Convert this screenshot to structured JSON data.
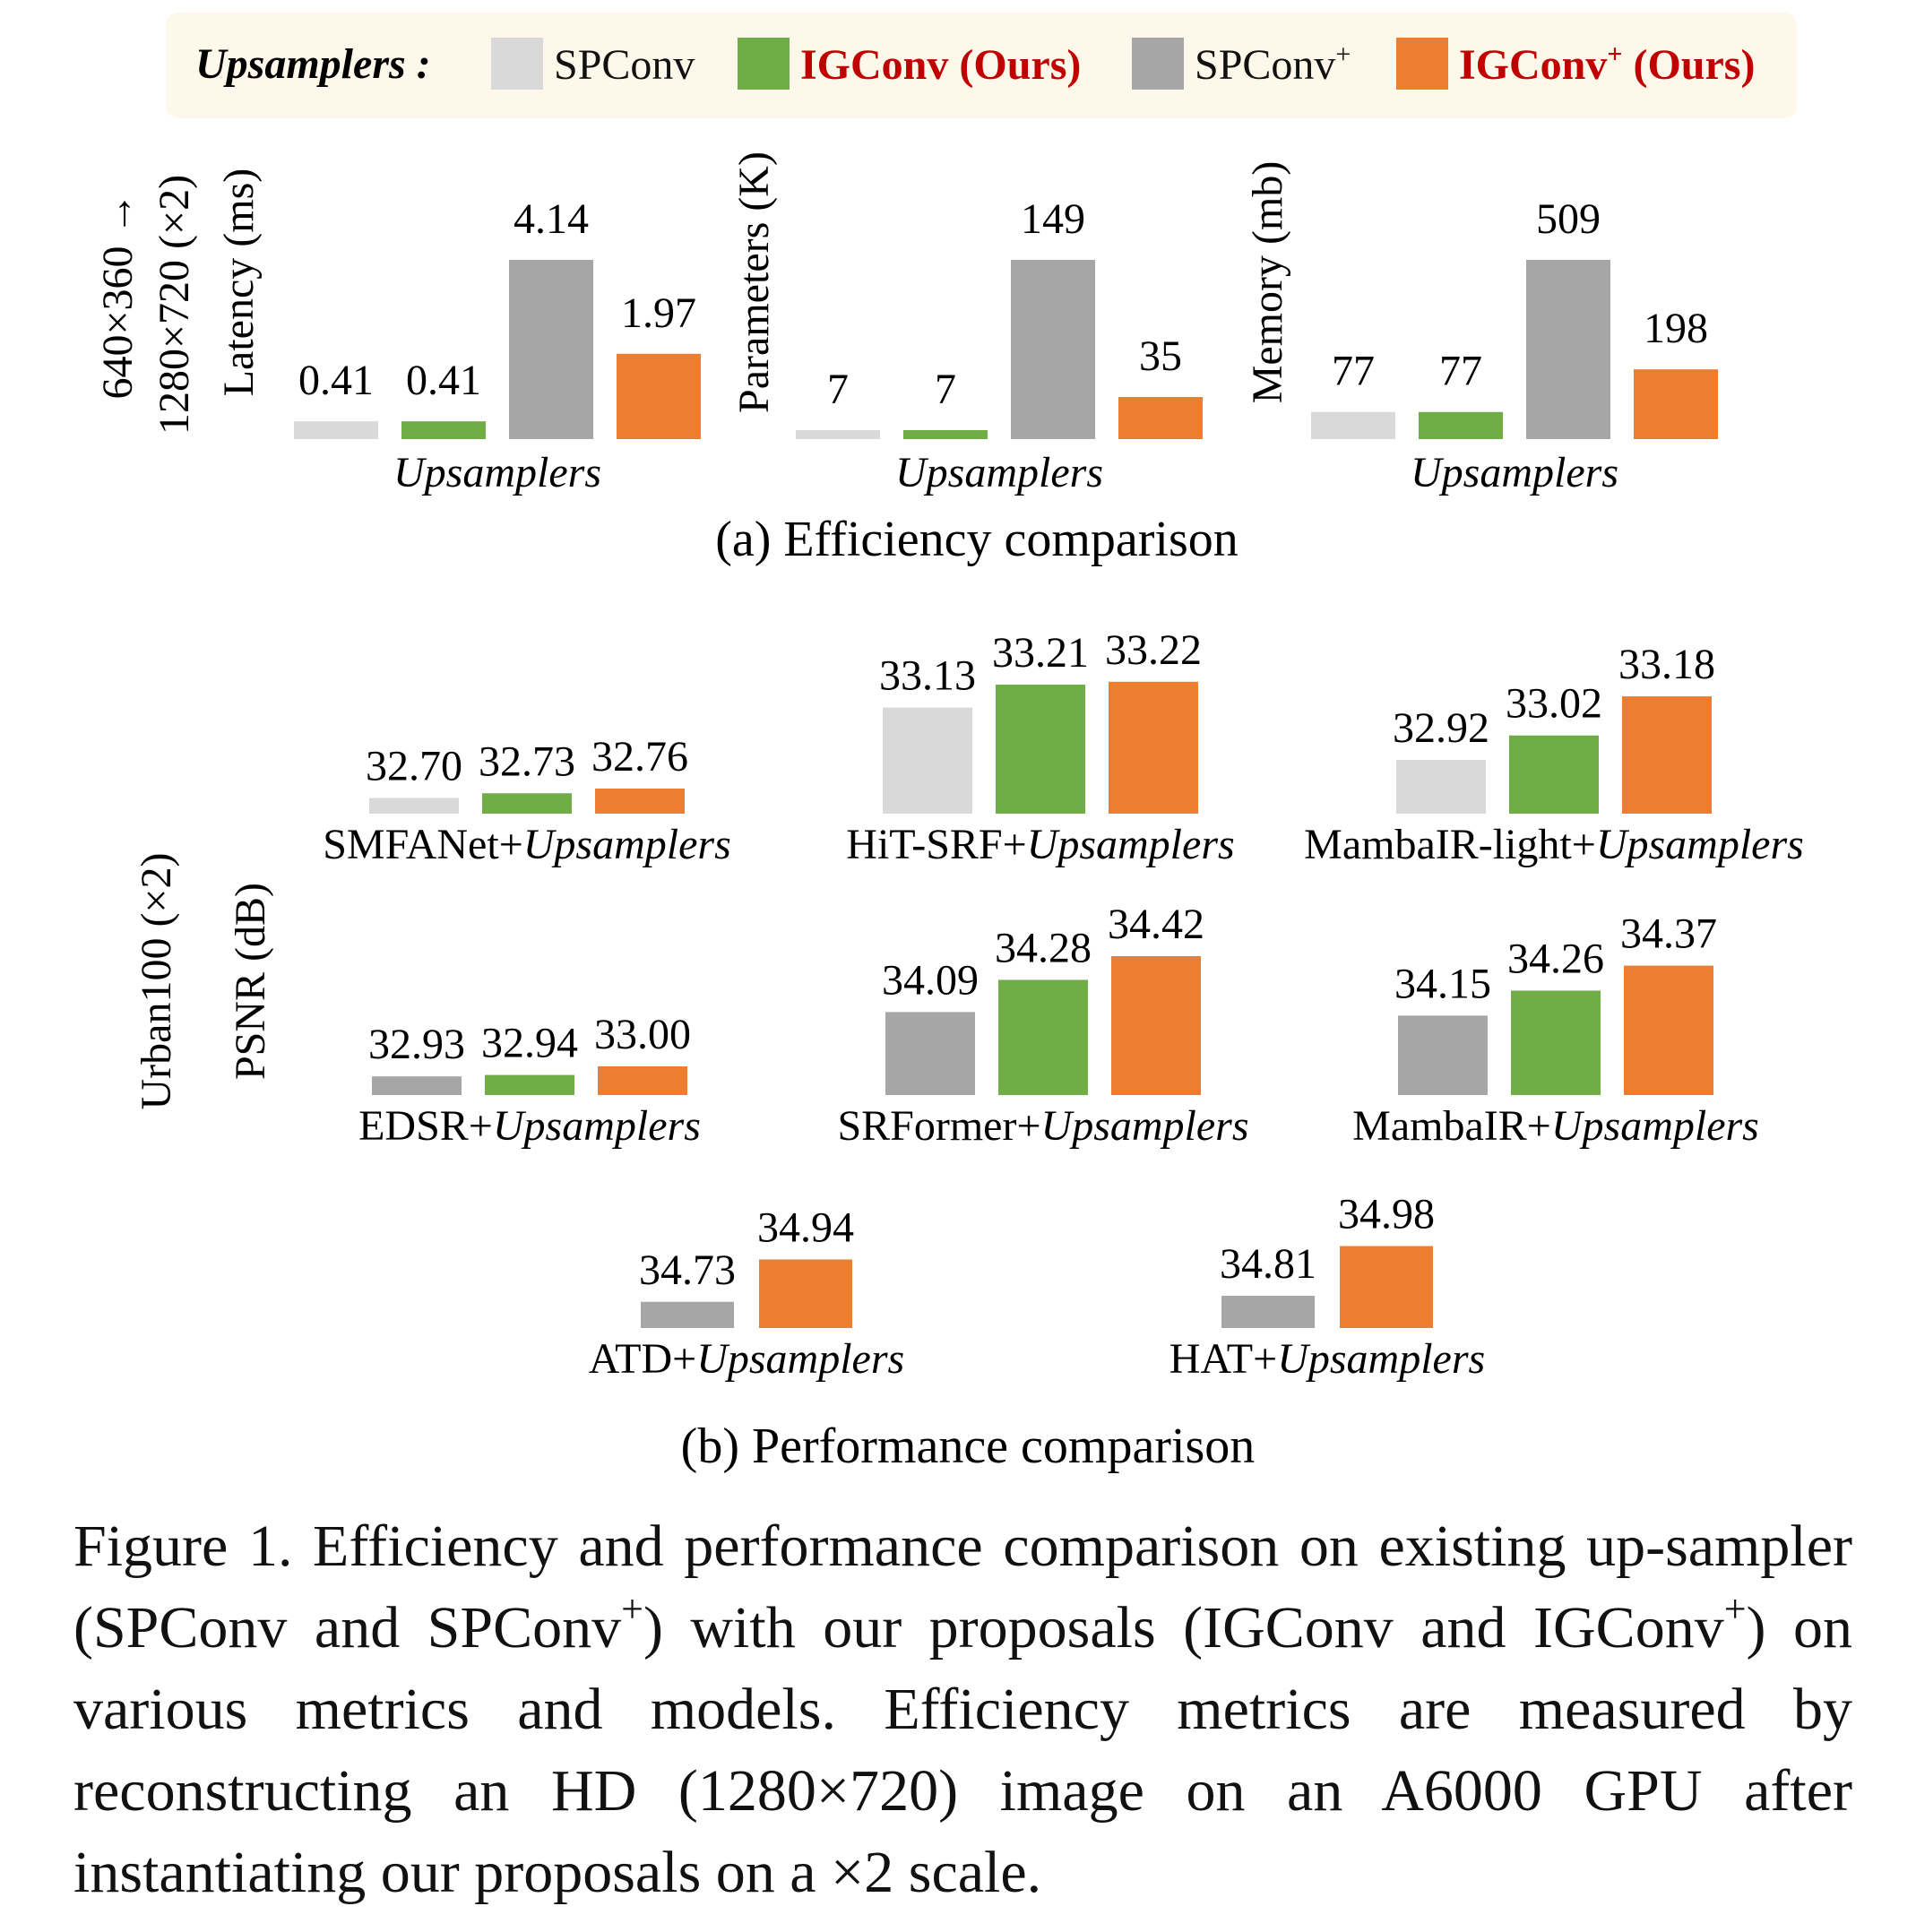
{
  "legend": {
    "title": "Upsamplers :",
    "items": [
      {
        "label": "SPConv",
        "sup": "",
        "ours": "",
        "color": "#d9d9d9",
        "label_color": "#111111",
        "bold": false
      },
      {
        "label": "IGConv",
        "sup": "",
        "ours": " (Ours)",
        "color": "#70ad47",
        "label_color": "#c00000",
        "bold": true
      },
      {
        "label": "SPConv",
        "sup": "+",
        "ours": "",
        "color": "#a6a6a6",
        "label_color": "#111111",
        "bold": false
      },
      {
        "label": "IGConv",
        "sup": "+",
        "ours": " (Ours)",
        "color": "#ed7d31",
        "label_color": "#c00000",
        "bold": true
      }
    ]
  },
  "efficiency": {
    "side_label_line1": "640×360 →",
    "side_label_line2": "1280×720 (×2)",
    "caption": "(a) Efficiency comparison"
  },
  "performance": {
    "side_label_1": "Urban100 (×2)",
    "side_label_2": "PSNR (dB)",
    "caption": "(b) Performance comparison"
  },
  "chart_data": [
    {
      "type": "bar",
      "group": "efficiency",
      "ylabel": "Latency (ms)",
      "xlabel": "Upsamplers",
      "categories": [
        "SPConv",
        "IGConv",
        "SPConv+",
        "IGConv+"
      ],
      "values": [
        0.41,
        0.41,
        4.14,
        1.97
      ],
      "labels": [
        "0.41",
        "0.41",
        "4.14",
        "1.97"
      ],
      "colors": [
        "#d9d9d9",
        "#70ad47",
        "#a6a6a6",
        "#ed7d31"
      ],
      "ymin": 0,
      "ymax": 4.14
    },
    {
      "type": "bar",
      "group": "efficiency",
      "ylabel": "Parameters (K)",
      "xlabel": "Upsamplers",
      "categories": [
        "SPConv",
        "IGConv",
        "SPConv+",
        "IGConv+"
      ],
      "values": [
        7,
        7,
        149,
        35
      ],
      "labels": [
        "7",
        "7",
        "149",
        "35"
      ],
      "colors": [
        "#d9d9d9",
        "#70ad47",
        "#a6a6a6",
        "#ed7d31"
      ],
      "ymin": 0,
      "ymax": 149
    },
    {
      "type": "bar",
      "group": "efficiency",
      "ylabel": "Memory (mb)",
      "xlabel": "Upsamplers",
      "categories": [
        "SPConv",
        "IGConv",
        "SPConv+",
        "IGConv+"
      ],
      "values": [
        77,
        77,
        509,
        198
      ],
      "labels": [
        "77",
        "77",
        "509",
        "198"
      ],
      "colors": [
        "#d9d9d9",
        "#70ad47",
        "#a6a6a6",
        "#ed7d31"
      ],
      "ymin": 0,
      "ymax": 509
    },
    {
      "type": "bar",
      "group": "performance",
      "model": "SMFANet",
      "xlabel_suffix": "Upsamplers",
      "categories": [
        "SPConv",
        "IGConv",
        "IGConv+"
      ],
      "values": [
        32.7,
        32.73,
        32.76
      ],
      "labels": [
        "32.70",
        "32.73",
        "32.76"
      ],
      "colors": [
        "#d9d9d9",
        "#70ad47",
        "#ed7d31"
      ],
      "ymin": 32.6,
      "ymax": 33.0
    },
    {
      "type": "bar",
      "group": "performance",
      "model": "HiT-SRF",
      "xlabel_suffix": "Upsamplers",
      "categories": [
        "SPConv",
        "IGConv",
        "IGConv+"
      ],
      "values": [
        33.13,
        33.21,
        33.22
      ],
      "labels": [
        "33.13",
        "33.21",
        "33.22"
      ],
      "colors": [
        "#d9d9d9",
        "#70ad47",
        "#ed7d31"
      ],
      "ymin": 32.76,
      "ymax": 33.26
    },
    {
      "type": "bar",
      "group": "performance",
      "model": "MambaIR-light",
      "xlabel_suffix": "Upsamplers",
      "categories": [
        "SPConv",
        "IGConv",
        "IGConv+"
      ],
      "values": [
        32.92,
        33.02,
        33.18
      ],
      "labels": [
        "32.92",
        "33.02",
        "33.18"
      ],
      "colors": [
        "#d9d9d9",
        "#70ad47",
        "#ed7d31"
      ],
      "ymin": 32.7,
      "ymax": 33.25
    },
    {
      "type": "bar",
      "group": "performance",
      "model": "EDSR",
      "xlabel_suffix": "Upsamplers",
      "categories": [
        "SPConv+",
        "IGConv",
        "IGConv+"
      ],
      "values": [
        32.93,
        32.94,
        33.0
      ],
      "labels": [
        "32.93",
        "32.94",
        "33.00"
      ],
      "colors": [
        "#a6a6a6",
        "#70ad47",
        "#ed7d31"
      ],
      "ymin": 32.8,
      "ymax": 33.3
    },
    {
      "type": "bar",
      "group": "performance",
      "model": "SRFormer",
      "xlabel_suffix": "Upsamplers",
      "categories": [
        "SPConv+",
        "IGConv",
        "IGConv+"
      ],
      "values": [
        34.09,
        34.28,
        34.42
      ],
      "labels": [
        "34.09",
        "34.28",
        "34.42"
      ],
      "colors": [
        "#a6a6a6",
        "#70ad47",
        "#ed7d31"
      ],
      "ymin": 33.6,
      "ymax": 34.42
    },
    {
      "type": "bar",
      "group": "performance",
      "model": "MambaIR",
      "xlabel_suffix": "Upsamplers",
      "categories": [
        "SPConv+",
        "IGConv",
        "IGConv+"
      ],
      "values": [
        34.15,
        34.26,
        34.37
      ],
      "labels": [
        "34.15",
        "34.26",
        "34.37"
      ],
      "colors": [
        "#a6a6a6",
        "#70ad47",
        "#ed7d31"
      ],
      "ymin": 33.8,
      "ymax": 34.4
    },
    {
      "type": "bar",
      "group": "performance",
      "model": "ATD",
      "xlabel_suffix": "Upsamplers",
      "categories": [
        "SPConv+",
        "IGConv+"
      ],
      "values": [
        34.73,
        34.94
      ],
      "labels": [
        "34.73",
        "34.94"
      ],
      "colors": [
        "#a6a6a6",
        "#ed7d31"
      ],
      "ymin": 34.6,
      "ymax": 35.0
    },
    {
      "type": "bar",
      "group": "performance",
      "model": "HAT",
      "xlabel_suffix": "Upsamplers",
      "categories": [
        "SPConv+",
        "IGConv+"
      ],
      "values": [
        34.81,
        34.98
      ],
      "labels": [
        "34.81",
        "34.98"
      ],
      "colors": [
        "#a6a6a6",
        "#ed7d31"
      ],
      "ymin": 34.7,
      "ymax": 35.0
    }
  ],
  "caption": {
    "p1": "Figure 1. Efficiency and performance comparison on existing up-sampler (SPConv and SPConv",
    "sup1": "+",
    "p2": ") with our proposals (IGConv and IGConv",
    "sup2": "+",
    "p3": ") on various metrics and models. Efficiency metrics are measured by reconstructing an HD (1280×720) image on an A6000 GPU after instantiating our proposals on a ×2 scale."
  }
}
